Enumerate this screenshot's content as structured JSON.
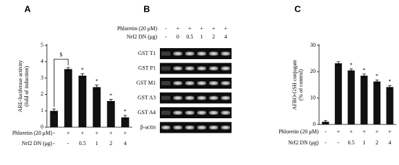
{
  "chart_data": [
    {
      "type": "bar",
      "label": "A",
      "y_label": [
        "ARE-luciferase activity",
        "(fold of induction)"
      ],
      "ylim": [
        0,
        5
      ],
      "yticks": [
        0,
        1,
        2,
        3,
        4,
        5
      ],
      "color": "#111111",
      "values": [
        1.0,
        3.55,
        3.15,
        2.45,
        1.6,
        0.6
      ],
      "errors": [
        0.12,
        0.1,
        0.12,
        0.12,
        0.1,
        0.12
      ],
      "category_rows": [
        {
          "name": "Phloretin (20 μM)",
          "labels": [
            "-",
            "+",
            "+",
            "+",
            "+",
            "+"
          ]
        },
        {
          "name": "Nrf2 DN (μg)",
          "labels": [
            "-",
            "-",
            "0.5",
            "1",
            "2",
            "4"
          ]
        }
      ],
      "annotations": [
        {
          "index": 2,
          "text": "*"
        },
        {
          "index": 3,
          "text": "*"
        },
        {
          "index": 4,
          "text": "*"
        },
        {
          "index": 5,
          "text": "*"
        }
      ],
      "bracket": {
        "from": 0,
        "to": 1,
        "text": "$"
      }
    },
    {
      "type": "bar",
      "label": "C",
      "y_label": [
        "AFBO-GSH conjugate",
        "(% of control)"
      ],
      "ylim": [
        0,
        30
      ],
      "yticks": [
        0,
        10,
        20,
        30
      ],
      "color": "#111111",
      "values": [
        1.0,
        23.2,
        20.5,
        18.5,
        16.3,
        14.2
      ],
      "errors": [
        0.5,
        0.6,
        0.6,
        0.6,
        0.6,
        0.6
      ],
      "category_rows": [
        {
          "name": "Phloretin (20 μM)",
          "labels": [
            "-",
            "+",
            "+",
            "+",
            "+",
            "+"
          ]
        },
        {
          "name": "Nrf2 DN (μg)",
          "labels": [
            "-",
            "-",
            "0.5",
            "1",
            "2",
            "4"
          ]
        }
      ],
      "annotations": [
        {
          "index": 2,
          "text": "*"
        },
        {
          "index": 3,
          "text": "*"
        },
        {
          "index": 4,
          "text": "*"
        },
        {
          "index": 5,
          "text": "*"
        }
      ]
    }
  ],
  "gel": {
    "label": "B",
    "header_rows": [
      {
        "name": "Phloretin (20 μM)",
        "labels": [
          "-",
          "+",
          "+",
          "+",
          "+",
          "+"
        ]
      },
      {
        "name": "Nrf2 DN (μg)",
        "labels": [
          "-",
          "0",
          "0.5",
          "1",
          "2",
          "4"
        ]
      }
    ],
    "lanes": [
      "GST T1",
      "GST P1",
      "GST M1",
      "GST A3",
      "GST A4",
      "β-actin"
    ]
  }
}
